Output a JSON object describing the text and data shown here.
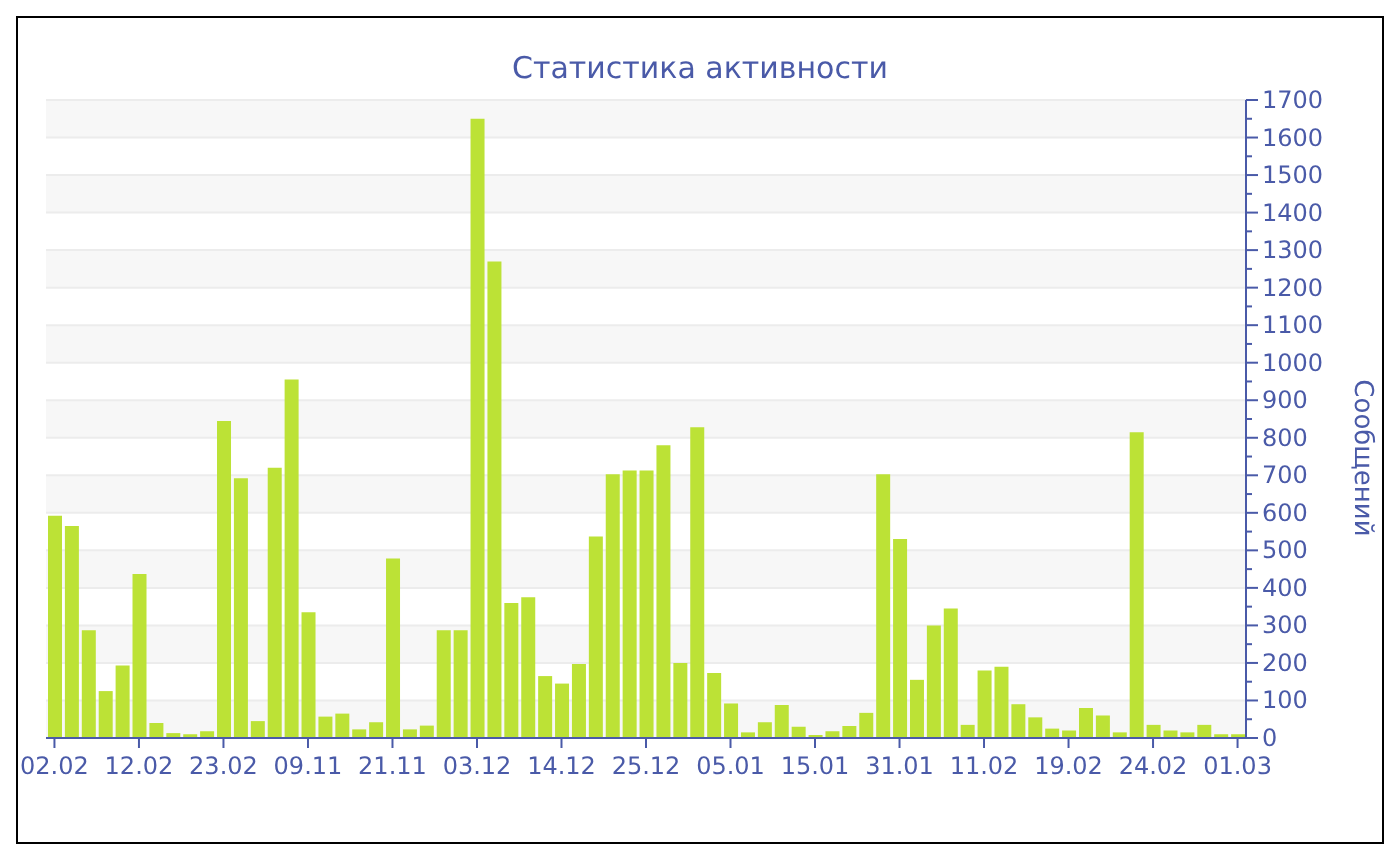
{
  "chart_data": {
    "type": "bar",
    "title": "Статистика активности",
    "y2label": "Сообщений",
    "categories": [
      "02.02",
      null,
      null,
      null,
      null,
      "12.02",
      null,
      null,
      null,
      null,
      "23.02",
      null,
      null,
      null,
      null,
      "09.11",
      null,
      null,
      null,
      null,
      "21.11",
      null,
      null,
      null,
      null,
      "03.12",
      null,
      null,
      null,
      null,
      "14.12",
      null,
      null,
      null,
      null,
      "25.12",
      null,
      null,
      null,
      null,
      "05.01",
      null,
      null,
      null,
      null,
      "15.01",
      null,
      null,
      null,
      null,
      "31.01",
      null,
      null,
      null,
      null,
      "11.02",
      null,
      null,
      null,
      null,
      "19.02",
      null,
      null,
      null,
      null,
      "24.02",
      null,
      null,
      null,
      null,
      "01.03"
    ],
    "series": [
      {
        "color": "#bce236",
        "axis": "y2",
        "values": [
          592,
          565,
          287,
          125,
          193,
          437,
          40,
          13,
          10,
          18,
          845,
          692,
          45,
          720,
          955,
          335,
          57,
          65,
          23,
          42,
          478,
          23,
          33,
          287,
          287,
          1650,
          1270,
          360,
          375,
          165,
          145,
          197,
          537,
          703,
          713,
          713,
          780,
          200,
          828,
          173,
          92,
          15,
          42,
          88,
          30,
          8,
          18,
          32,
          67,
          703,
          530,
          155,
          300,
          345,
          35,
          180,
          190,
          90,
          55,
          25,
          20,
          80,
          60,
          15,
          815,
          35,
          20,
          15,
          35,
          10,
          10
        ]
      }
    ],
    "y2lim": [
      0,
      1700
    ],
    "y2ticks": [
      0,
      {
        "value": 50,
        "label": null
      },
      100,
      {
        "value": 150,
        "label": null
      },
      200,
      {
        "value": 250,
        "label": null
      },
      300,
      {
        "value": 350,
        "label": null
      },
      400,
      {
        "value": 450,
        "label": null
      },
      500,
      {
        "value": 550,
        "label": null
      },
      600,
      {
        "value": 650,
        "label": null
      },
      700,
      {
        "value": 750,
        "label": null
      },
      800,
      {
        "value": 850,
        "label": null
      },
      900,
      {
        "value": 950,
        "label": null
      },
      1000,
      {
        "value": 1050,
        "label": null
      },
      1100,
      {
        "value": 1150,
        "label": null
      },
      1200,
      {
        "value": 1250,
        "label": null
      },
      1300,
      {
        "value": 1350,
        "label": null
      },
      1400,
      {
        "value": 1450,
        "label": null
      },
      1500,
      {
        "value": 1550,
        "label": null
      },
      1600,
      {
        "value": 1650,
        "label": null
      },
      1700
    ],
    "grid": "y"
  }
}
